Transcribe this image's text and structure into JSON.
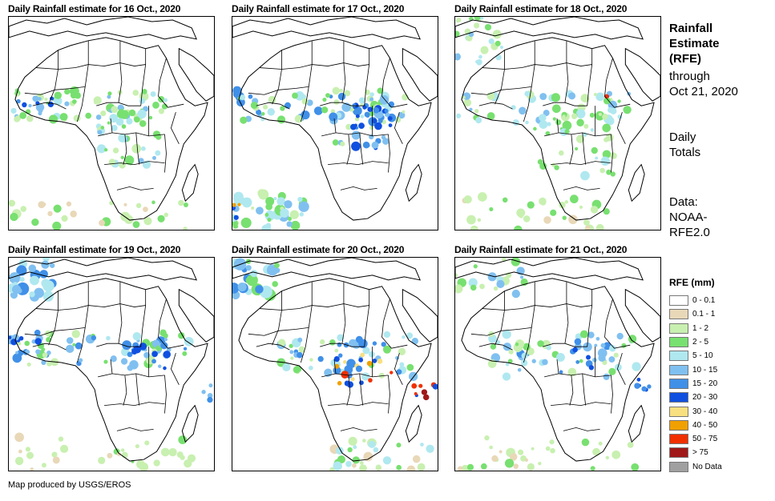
{
  "panels": [
    {
      "title": "Daily Rainfall estimate for 16 Oct., 2020"
    },
    {
      "title": "Daily Rainfall estimate for 17 Oct., 2020"
    },
    {
      "title": "Daily Rainfall estimate for 18 Oct., 2020"
    },
    {
      "title": "Daily Rainfall estimate for 19 Oct., 2020"
    },
    {
      "title": "Daily Rainfall estimate for 20 Oct., 2020"
    },
    {
      "title": "Daily Rainfall estimate for 21 Oct., 2020"
    }
  ],
  "sidebar": {
    "title_line1": "Rainfall",
    "title_line2": "Estimate",
    "title_line3": "(RFE)",
    "through_label": "through",
    "through_date": "Oct 21, 2020",
    "daily_line1": "Daily",
    "daily_line2": "Totals",
    "data_line1": "Data:",
    "data_line2": "NOAA-",
    "data_line3": "RFE2.0"
  },
  "legend": {
    "title": "RFE (mm)",
    "items": [
      {
        "label": "0 - 0.1",
        "color": "#ffffff"
      },
      {
        "label": "0.1 - 1",
        "color": "#e8d8b8"
      },
      {
        "label": "1 - 2",
        "color": "#c8f0b0"
      },
      {
        "label": "2 - 5",
        "color": "#78e070"
      },
      {
        "label": "5 - 10",
        "color": "#b0e8f0"
      },
      {
        "label": "10 - 15",
        "color": "#80c0f0"
      },
      {
        "label": "15 - 20",
        "color": "#4090e8"
      },
      {
        "label": "20 - 30",
        "color": "#1050e0"
      },
      {
        "label": "30 - 40",
        "color": "#f8e080"
      },
      {
        "label": "40 - 50",
        "color": "#f0a000"
      },
      {
        "label": "50 - 75",
        "color": "#f03000"
      },
      {
        "label": "> 75",
        "color": "#a01818"
      },
      {
        "label": "No Data",
        "color": "#a0a0a0"
      }
    ]
  },
  "credit": "Map produced by USGS/EROS"
}
